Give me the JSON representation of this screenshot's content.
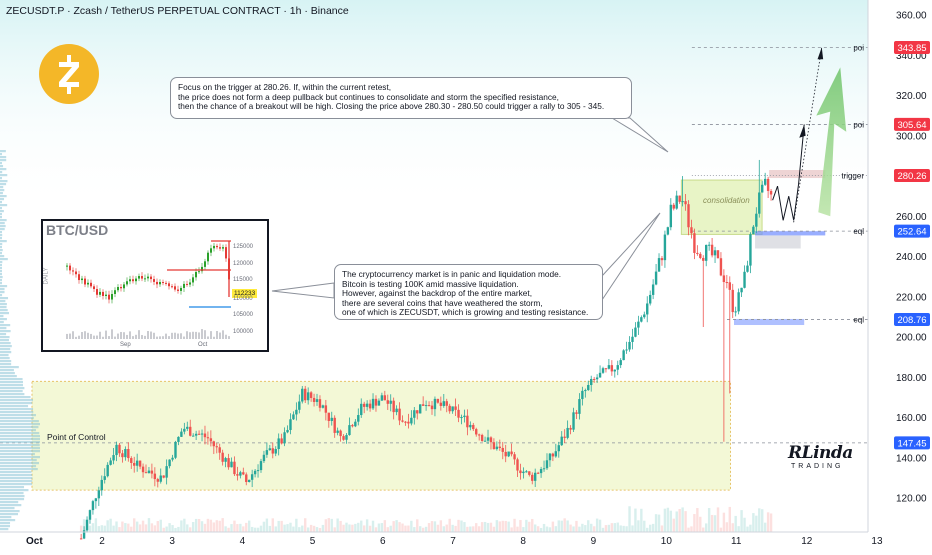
{
  "header": {
    "title": "ZECUSDT.P · Zcash / TetherUS PERPETUAL CONTRACT · 1h · Binance"
  },
  "colors": {
    "up": "#26a69a",
    "down": "#ef5350",
    "zone": "#f3f8d6",
    "blue_tag": "#2962ff",
    "red_tag": "#f23645",
    "logo": "#f4b728"
  },
  "icons": {
    "logo": "zcash-logo-icon",
    "watermark": "rlinda-trading-logo"
  },
  "notes": {
    "top": [
      "Focus on the trigger at 280.26. If, within the current retest,",
      "the price does not form a deep pullback but continues to consolidate and storm the specified resistance,",
      "then the chance of a breakout will be high. Closing the price above 280.30 - 280.50 could trigger a rally to 305 - 345."
    ],
    "middle": [
      "The cryptocurrency market is in panic and liquidation mode.",
      "Bitcoin is testing 100K amid massive liquidation.",
      "However, against the backdrop of the entire market,",
      "there are several coins that have weathered the storm,",
      "one of which is ZECUSDT, which is growing and testing resistance."
    ]
  },
  "inset": {
    "title": "BTC/USD",
    "side_label": "DAILY",
    "price_tag": "112233",
    "y_labels": [
      "125000",
      "120000",
      "115000",
      "110000",
      "105000",
      "100000"
    ],
    "x_labels": [
      "Sep",
      "Oct"
    ]
  },
  "chart_labels": {
    "consolidation": "consolidation",
    "point_of_control": "Point of Control",
    "watermark_top": "RLinda",
    "watermark_bottom": "TRADING"
  },
  "chart_data": {
    "type": "candlestick",
    "symbol": "ZECUSDT.P",
    "timeframe": "1h",
    "x_labels": [
      "Oct",
      "2",
      "3",
      "4",
      "5",
      "6",
      "7",
      "8",
      "9",
      "10",
      "11",
      "12",
      "13"
    ],
    "y_ticks": [
      120,
      140,
      160,
      180,
      200,
      220,
      240,
      260,
      280,
      300,
      320,
      340,
      360
    ],
    "ylim": [
      110,
      364
    ],
    "price_path": [
      {
        "day": 1.7,
        "price": 100
      },
      {
        "day": 1.95,
        "price": 126
      },
      {
        "day": 2.2,
        "price": 146
      },
      {
        "day": 2.5,
        "price": 136
      },
      {
        "day": 2.85,
        "price": 130
      },
      {
        "day": 3.15,
        "price": 155
      },
      {
        "day": 3.5,
        "price": 150
      },
      {
        "day": 3.85,
        "price": 135
      },
      {
        "day": 4.05,
        "price": 128
      },
      {
        "day": 4.3,
        "price": 140
      },
      {
        "day": 4.6,
        "price": 150
      },
      {
        "day": 4.85,
        "price": 172
      },
      {
        "day": 5.1,
        "price": 168
      },
      {
        "day": 5.4,
        "price": 150
      },
      {
        "day": 5.7,
        "price": 165
      },
      {
        "day": 6.0,
        "price": 170
      },
      {
        "day": 6.3,
        "price": 158
      },
      {
        "day": 6.6,
        "price": 168
      },
      {
        "day": 6.9,
        "price": 165
      },
      {
        "day": 7.2,
        "price": 158
      },
      {
        "day": 7.5,
        "price": 148
      },
      {
        "day": 7.8,
        "price": 140
      },
      {
        "day": 8.1,
        "price": 130
      },
      {
        "day": 8.4,
        "price": 140
      },
      {
        "day": 8.65,
        "price": 155
      },
      {
        "day": 8.85,
        "price": 172
      },
      {
        "day": 9.05,
        "price": 180
      },
      {
        "day": 9.3,
        "price": 185
      },
      {
        "day": 9.55,
        "price": 200
      },
      {
        "day": 9.75,
        "price": 215
      },
      {
        "day": 9.95,
        "price": 238
      },
      {
        "day": 10.1,
        "price": 262
      },
      {
        "day": 10.25,
        "price": 270
      },
      {
        "day": 10.45,
        "price": 245
      },
      {
        "day": 10.7,
        "price": 240
      },
      {
        "day": 10.9,
        "price": 228
      },
      {
        "day": 11.0,
        "price": 212
      },
      {
        "day": 11.15,
        "price": 230
      },
      {
        "day": 11.3,
        "price": 262
      },
      {
        "day": 11.45,
        "price": 275
      },
      {
        "day": 11.55,
        "price": 268
      }
    ],
    "levels": [
      {
        "label": "poi",
        "value": 343.85,
        "style": "dashed",
        "tag_color": "red"
      },
      {
        "label": "poi",
        "value": 305.64,
        "style": "dashed",
        "tag_color": "red"
      },
      {
        "label": "trigger",
        "value": 280.26,
        "style": "dotted",
        "tag_color": "red"
      },
      {
        "label": "eql",
        "value": 252.64,
        "style": "dashed",
        "tag_color": "blue"
      },
      {
        "label": "eql",
        "value": 208.76,
        "style": "dashed",
        "tag_color": "blue"
      },
      {
        "label": "",
        "value": 147.45,
        "style": "dashed",
        "tag_color": "blue"
      }
    ],
    "zones": [
      {
        "label": "Point of Control",
        "from_day": 1.0,
        "to_day": 10.95,
        "low": 124,
        "high": 178
      },
      {
        "label": "consolidation",
        "from_day": 10.25,
        "to_day": 11.4,
        "low": 251,
        "high": 278
      }
    ],
    "forecast_target": 343.85
  },
  "price_axis": {
    "tags": [
      {
        "value": 343.85,
        "text": "343.85",
        "color": "#f23645"
      },
      {
        "value": 305.64,
        "text": "305.64",
        "color": "#f23645"
      },
      {
        "value": 280.26,
        "text": "280.26",
        "color": "#f23645"
      },
      {
        "value": 252.64,
        "text": "252.64",
        "color": "#2962ff"
      },
      {
        "value": 208.76,
        "text": "208.76",
        "color": "#2962ff"
      },
      {
        "value": 147.45,
        "text": "147.45",
        "color": "#2962ff"
      }
    ]
  }
}
